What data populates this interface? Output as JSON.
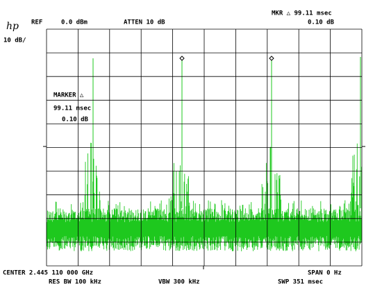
{
  "header": {
    "logo": "hp",
    "ref_label": "REF",
    "ref_value": "0.0 dBm",
    "atten": "ATTEN 10 dB",
    "marker_readout": "MKR △ 99.11 msec",
    "marker_level": "0.10 dB",
    "scale": "10 dB/"
  },
  "marker_box": {
    "title": "MARKER △",
    "time": "99.11 msec",
    "level": "0.10 dB"
  },
  "footer": {
    "center": "CENTER 2.445 110 000 GHz",
    "span": "SPAN 0 Hz",
    "res_bw": "RES BW 100 kHz",
    "vbw": "VBW 300 kHz",
    "sweep": "SWP 351 msec"
  }
}
